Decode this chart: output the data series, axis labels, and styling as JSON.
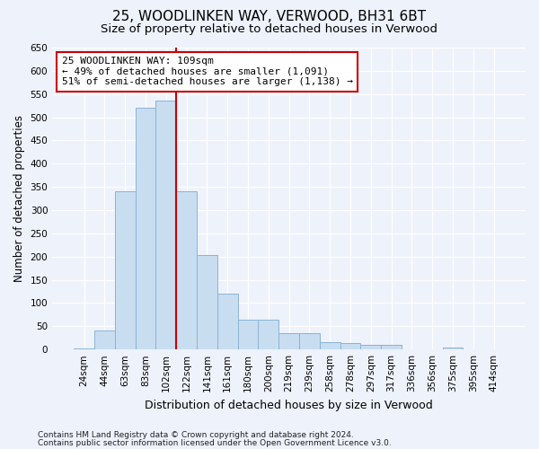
{
  "title1": "25, WOODLINKEN WAY, VERWOOD, BH31 6BT",
  "title2": "Size of property relative to detached houses in Verwood",
  "xlabel": "Distribution of detached houses by size in Verwood",
  "ylabel": "Number of detached properties",
  "categories": [
    "24sqm",
    "44sqm",
    "63sqm",
    "83sqm",
    "102sqm",
    "122sqm",
    "141sqm",
    "161sqm",
    "180sqm",
    "200sqm",
    "219sqm",
    "239sqm",
    "258sqm",
    "278sqm",
    "297sqm",
    "317sqm",
    "336sqm",
    "356sqm",
    "375sqm",
    "395sqm",
    "414sqm"
  ],
  "values": [
    2,
    40,
    340,
    520,
    535,
    340,
    204,
    120,
    65,
    65,
    36,
    36,
    16,
    14,
    10,
    10,
    1,
    1,
    5,
    1,
    1
  ],
  "bar_color": "#c8ddf0",
  "bar_edge_color": "#8ab4d4",
  "vline_color": "#cc0000",
  "vline_x": 4.5,
  "annotation_line1": "25 WOODLINKEN WAY: 109sqm",
  "annotation_line2": "← 49% of detached houses are smaller (1,091)",
  "annotation_line3": "51% of semi-detached houses are larger (1,138) →",
  "ylim": [
    0,
    650
  ],
  "yticks": [
    0,
    50,
    100,
    150,
    200,
    250,
    300,
    350,
    400,
    450,
    500,
    550,
    600,
    650
  ],
  "footnote1": "Contains HM Land Registry data © Crown copyright and database right 2024.",
  "footnote2": "Contains public sector information licensed under the Open Government Licence v3.0.",
  "background_color": "#edf2fb",
  "grid_color": "#ffffff",
  "title1_fontsize": 11,
  "title2_fontsize": 9.5,
  "tick_fontsize": 7.5,
  "ylabel_fontsize": 8.5,
  "xlabel_fontsize": 9,
  "annotation_fontsize": 8,
  "footnote_fontsize": 6.5
}
